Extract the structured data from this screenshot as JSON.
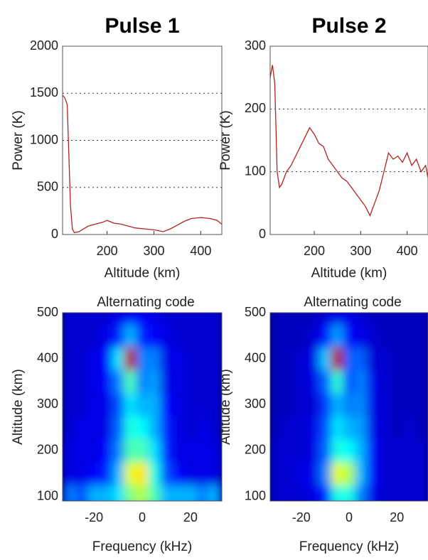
{
  "chart_data": [
    {
      "type": "line",
      "title": "Pulse 1",
      "xlabel": "Altitude (km)",
      "ylabel": "Power (K)",
      "x": [
        105,
        110,
        115,
        118,
        122,
        126,
        130,
        140,
        150,
        160,
        175,
        190,
        200,
        215,
        230,
        245,
        260,
        280,
        300,
        320,
        335,
        350,
        365,
        380,
        400,
        420,
        435,
        445
      ],
      "series": [
        {
          "name": "Pulse 1",
          "color": "#b22222",
          "values": [
            1480,
            1450,
            1380,
            900,
            300,
            60,
            20,
            30,
            60,
            90,
            110,
            130,
            150,
            120,
            110,
            90,
            70,
            60,
            50,
            30,
            60,
            100,
            140,
            170,
            180,
            170,
            150,
            110
          ]
        }
      ],
      "xlim": [
        105,
        445
      ],
      "ylim": [
        0,
        2000
      ],
      "xticks": [
        200,
        300,
        400
      ],
      "yticks": [
        0,
        500,
        1000,
        1500,
        2000
      ],
      "grid": "y"
    },
    {
      "type": "line",
      "title": "Pulse 2",
      "xlabel": "Altitude (km)",
      "ylabel": "Power (K)",
      "x": [
        105,
        110,
        115,
        120,
        125,
        130,
        140,
        150,
        160,
        170,
        180,
        190,
        200,
        210,
        220,
        230,
        240,
        250,
        260,
        270,
        280,
        290,
        300,
        310,
        320,
        330,
        340,
        350,
        360,
        370,
        380,
        390,
        400,
        410,
        420,
        430,
        440,
        445
      ],
      "series": [
        {
          "name": "Pulse 2",
          "color": "#b22222",
          "values": [
            250,
            270,
            240,
            100,
            75,
            80,
            100,
            110,
            125,
            140,
            155,
            170,
            160,
            145,
            140,
            120,
            110,
            100,
            90,
            85,
            75,
            65,
            55,
            45,
            30,
            50,
            70,
            100,
            130,
            120,
            125,
            115,
            130,
            110,
            120,
            100,
            110,
            90
          ]
        }
      ],
      "xlim": [
        105,
        445
      ],
      "ylim": [
        0,
        300
      ],
      "xticks": [
        200,
        300,
        400
      ],
      "yticks": [
        0,
        100,
        200,
        300
      ],
      "grid": "y"
    },
    {
      "type": "heatmap",
      "title": "Alternating code",
      "xlabel": "Frequency (kHz)",
      "ylabel": "Altitude (km)",
      "colormap": "jet",
      "x": [
        -30,
        -25,
        -20,
        -15,
        -10,
        -5,
        0,
        5,
        10,
        15,
        20,
        25,
        30
      ],
      "y": [
        100,
        150,
        200,
        250,
        300,
        350,
        400,
        450,
        500
      ],
      "values": [
        [
          0.25,
          0.2,
          0.3,
          0.3,
          0.35,
          0.5,
          0.55,
          0.45,
          0.3,
          0.3,
          0.3,
          0.25,
          0.3
        ],
        [
          0.1,
          0.1,
          0.12,
          0.15,
          0.3,
          0.6,
          0.65,
          0.4,
          0.2,
          0.12,
          0.1,
          0.1,
          0.1
        ],
        [
          0.1,
          0.1,
          0.1,
          0.12,
          0.25,
          0.45,
          0.45,
          0.35,
          0.15,
          0.1,
          0.1,
          0.1,
          0.1
        ],
        [
          0.08,
          0.1,
          0.1,
          0.1,
          0.22,
          0.4,
          0.38,
          0.3,
          0.15,
          0.1,
          0.08,
          0.1,
          0.08
        ],
        [
          0.08,
          0.08,
          0.1,
          0.1,
          0.2,
          0.35,
          0.3,
          0.3,
          0.12,
          0.1,
          0.08,
          0.08,
          0.08
        ],
        [
          0.08,
          0.08,
          0.1,
          0.12,
          0.25,
          0.45,
          0.25,
          0.28,
          0.1,
          0.1,
          0.08,
          0.08,
          0.08
        ],
        [
          0.08,
          0.08,
          0.1,
          0.12,
          0.35,
          0.95,
          0.25,
          0.25,
          0.1,
          0.1,
          0.08,
          0.08,
          0.08
        ],
        [
          0.08,
          0.08,
          0.08,
          0.1,
          0.15,
          0.3,
          0.15,
          0.12,
          0.1,
          0.08,
          0.08,
          0.08,
          0.08
        ],
        [
          0.08,
          0.08,
          0.08,
          0.08,
          0.1,
          0.12,
          0.12,
          0.1,
          0.08,
          0.08,
          0.08,
          0.08,
          0.08
        ]
      ],
      "xlim": [
        -33,
        33
      ],
      "ylim": [
        90,
        500
      ],
      "xticks": [
        -20,
        0,
        20
      ],
      "yticks": [
        100,
        200,
        300,
        400,
        500
      ]
    },
    {
      "type": "heatmap",
      "title": "Alternating code",
      "xlabel": "Frequency (kHz)",
      "ylabel": "Altitude (km)",
      "colormap": "jet",
      "x": [
        -30,
        -25,
        -20,
        -15,
        -10,
        -5,
        0,
        5,
        10,
        15,
        20,
        25,
        30
      ],
      "y": [
        100,
        150,
        200,
        250,
        300,
        350,
        400,
        450,
        500
      ],
      "values": [
        [
          0.08,
          0.08,
          0.08,
          0.1,
          0.15,
          0.4,
          0.4,
          0.25,
          0.1,
          0.08,
          0.08,
          0.08,
          0.08
        ],
        [
          0.08,
          0.08,
          0.1,
          0.1,
          0.25,
          0.6,
          0.55,
          0.3,
          0.12,
          0.08,
          0.08,
          0.08,
          0.08
        ],
        [
          0.08,
          0.08,
          0.08,
          0.1,
          0.22,
          0.4,
          0.38,
          0.3,
          0.12,
          0.08,
          0.08,
          0.08,
          0.08
        ],
        [
          0.06,
          0.08,
          0.08,
          0.1,
          0.2,
          0.35,
          0.3,
          0.28,
          0.1,
          0.08,
          0.06,
          0.08,
          0.06
        ],
        [
          0.06,
          0.06,
          0.08,
          0.08,
          0.18,
          0.3,
          0.25,
          0.26,
          0.1,
          0.08,
          0.06,
          0.06,
          0.06
        ],
        [
          0.06,
          0.06,
          0.08,
          0.1,
          0.22,
          0.42,
          0.2,
          0.25,
          0.1,
          0.08,
          0.06,
          0.06,
          0.06
        ],
        [
          0.06,
          0.06,
          0.08,
          0.1,
          0.32,
          0.95,
          0.22,
          0.22,
          0.08,
          0.08,
          0.06,
          0.06,
          0.06
        ],
        [
          0.06,
          0.06,
          0.06,
          0.08,
          0.14,
          0.28,
          0.12,
          0.1,
          0.08,
          0.06,
          0.06,
          0.06,
          0.06
        ],
        [
          0.06,
          0.06,
          0.06,
          0.06,
          0.08,
          0.1,
          0.1,
          0.08,
          0.06,
          0.06,
          0.06,
          0.06,
          0.06
        ]
      ],
      "xlim": [
        -33,
        33
      ],
      "ylim": [
        90,
        500
      ],
      "xticks": [
        -20,
        0,
        20
      ],
      "yticks": [
        100,
        200,
        300,
        400,
        500
      ]
    }
  ]
}
